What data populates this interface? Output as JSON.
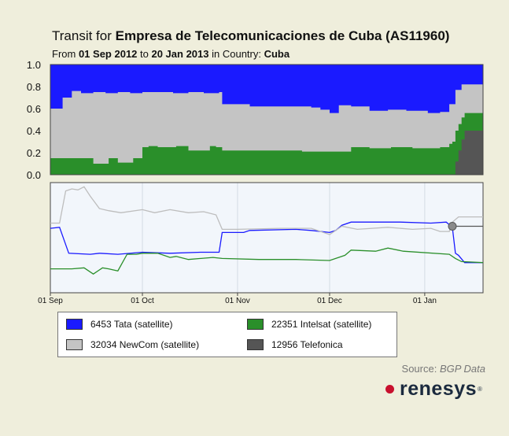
{
  "header": {
    "title_prefix": "Transit for ",
    "title_bold": "Empresa de Telecomunicaciones de Cuba (AS11960)",
    "sub_from": "From ",
    "sub_start": "01 Sep 2012",
    "sub_to": " to ",
    "sub_end": "20 Jan 2013",
    "sub_in": " in Country: ",
    "sub_country": "Cuba"
  },
  "chart_data": [
    {
      "type": "area",
      "stacked": true,
      "x_range": [
        "2012-09-01",
        "2013-01-20"
      ],
      "ylim": [
        0,
        1.0
      ],
      "y_ticks": [
        "1.0",
        "0.8",
        "0.6",
        "0.4",
        "0.2",
        "0.0"
      ],
      "series": [
        {
          "name": "12956 Telefonica",
          "color": "#555555",
          "x": [
            "2012-09-01",
            "2013-01-10",
            "2013-01-11",
            "2013-01-12",
            "2013-01-13",
            "2013-01-14",
            "2013-01-20"
          ],
          "values": [
            0,
            0,
            0.12,
            0.22,
            0.32,
            0.4,
            0.4
          ]
        },
        {
          "name": "22351 Intelsat (satellite)",
          "color": "#2a8f2a",
          "x": [
            "2012-09-01",
            "2012-09-12",
            "2012-09-15",
            "2012-09-20",
            "2012-09-23",
            "2012-09-28",
            "2012-10-01",
            "2012-10-03",
            "2012-10-06",
            "2012-10-12",
            "2012-10-16",
            "2012-10-23",
            "2012-10-25",
            "2012-10-27",
            "2012-11-05",
            "2012-11-15",
            "2012-11-22",
            "2012-12-04",
            "2012-12-08",
            "2012-12-14",
            "2012-12-21",
            "2012-12-28",
            "2013-01-03",
            "2013-01-06",
            "2013-01-09",
            "2013-01-10",
            "2013-01-11",
            "2013-01-12",
            "2013-01-13",
            "2013-01-14",
            "2013-01-20"
          ],
          "values": [
            0.15,
            0.15,
            0.1,
            0.15,
            0.11,
            0.15,
            0.25,
            0.26,
            0.25,
            0.26,
            0.22,
            0.26,
            0.25,
            0.22,
            0.22,
            0.22,
            0.21,
            0.21,
            0.25,
            0.24,
            0.25,
            0.24,
            0.24,
            0.25,
            0.28,
            0.3,
            0.4,
            0.46,
            0.52,
            0.56,
            0.57
          ]
        },
        {
          "name": "32034 NewCom (satellite)",
          "color": "#c4c4c4",
          "x": [
            "2012-09-01",
            "2012-09-04",
            "2012-09-05",
            "2012-09-08",
            "2012-09-11",
            "2012-09-15",
            "2012-09-19",
            "2012-09-23",
            "2012-09-27",
            "2012-10-01",
            "2012-10-06",
            "2012-10-11",
            "2012-10-16",
            "2012-10-21",
            "2012-10-26",
            "2012-10-27",
            "2012-11-05",
            "2012-11-15",
            "2012-11-25",
            "2012-11-28",
            "2012-12-01",
            "2012-12-04",
            "2012-12-08",
            "2012-12-14",
            "2012-12-20",
            "2012-12-26",
            "2013-01-02",
            "2013-01-06",
            "2013-01-09",
            "2013-01-11",
            "2013-01-13",
            "2013-01-20"
          ],
          "values": [
            0.6,
            0.6,
            0.7,
            0.76,
            0.74,
            0.75,
            0.74,
            0.75,
            0.74,
            0.75,
            0.75,
            0.74,
            0.75,
            0.74,
            0.75,
            0.64,
            0.62,
            0.62,
            0.61,
            0.59,
            0.56,
            0.63,
            0.62,
            0.58,
            0.59,
            0.58,
            0.56,
            0.57,
            0.64,
            0.77,
            0.82,
            0.82
          ]
        },
        {
          "name": "6453 Tata (satellite)",
          "color": "#1a1aff",
          "x": [
            "2012-09-01",
            "2013-01-20"
          ],
          "values": [
            1.0,
            1.0
          ]
        }
      ]
    },
    {
      "type": "line",
      "x_range": [
        "2012-09-01",
        "2013-01-20"
      ],
      "x_ticks": [
        "01 Sep",
        "01 Oct",
        "01 Nov",
        "01 Dec",
        "01 Jan"
      ],
      "x_tick_dates": [
        "2012-09-01",
        "2012-10-01",
        "2012-11-01",
        "2012-12-01",
        "2013-01-01"
      ],
      "y_range": [
        0,
        1
      ],
      "series": [
        {
          "name": "6453 Tata (satellite)",
          "color": "#1a1aff",
          "x": [
            "2012-09-01",
            "2012-09-04",
            "2012-09-07",
            "2012-09-14",
            "2012-09-17",
            "2012-09-23",
            "2012-10-01",
            "2012-10-10",
            "2012-10-20",
            "2012-10-26",
            "2012-10-27",
            "2012-11-03",
            "2012-11-05",
            "2012-11-20",
            "2012-11-25",
            "2012-12-01",
            "2012-12-03",
            "2012-12-05",
            "2012-12-08",
            "2012-12-24",
            "2013-01-03",
            "2013-01-08",
            "2013-01-10",
            "2013-01-11",
            "2013-01-12",
            "2013-01-14",
            "2013-01-20"
          ],
          "values": [
            0.59,
            0.6,
            0.35,
            0.34,
            0.35,
            0.34,
            0.36,
            0.35,
            0.36,
            0.36,
            0.55,
            0.55,
            0.57,
            0.58,
            0.57,
            0.55,
            0.57,
            0.62,
            0.65,
            0.65,
            0.64,
            0.65,
            0.6,
            0.35,
            0.33,
            0.26,
            0.26
          ]
        },
        {
          "name": "22351 Intelsat (satellite)",
          "color": "#2a8f2a",
          "x": [
            "2012-09-01",
            "2012-09-08",
            "2012-09-12",
            "2012-09-15",
            "2012-09-18",
            "2012-09-20",
            "2012-09-23",
            "2012-09-26",
            "2012-09-29",
            "2012-10-01",
            "2012-10-06",
            "2012-10-08",
            "2012-10-10",
            "2012-10-12",
            "2012-10-16",
            "2012-10-24",
            "2012-10-27",
            "2012-11-08",
            "2012-11-20",
            "2012-12-01",
            "2012-12-06",
            "2012-12-08",
            "2012-12-16",
            "2012-12-20",
            "2012-12-25",
            "2013-01-09",
            "2013-01-11",
            "2013-01-13",
            "2013-01-20"
          ],
          "values": [
            0.2,
            0.2,
            0.21,
            0.15,
            0.21,
            0.2,
            0.18,
            0.34,
            0.34,
            0.35,
            0.35,
            0.33,
            0.31,
            0.32,
            0.29,
            0.31,
            0.3,
            0.29,
            0.29,
            0.28,
            0.33,
            0.38,
            0.37,
            0.4,
            0.37,
            0.34,
            0.3,
            0.27,
            0.26
          ]
        },
        {
          "name": "32034 NewCom (satellite)",
          "color": "#c4c4c4",
          "x": [
            "2012-09-01",
            "2012-09-04",
            "2012-09-06",
            "2012-09-08",
            "2012-09-10",
            "2012-09-12",
            "2012-09-14",
            "2012-09-17",
            "2012-09-20",
            "2012-09-24",
            "2012-10-01",
            "2012-10-05",
            "2012-10-10",
            "2012-10-16",
            "2012-10-21",
            "2012-10-25",
            "2012-10-27",
            "2012-11-01",
            "2012-11-15",
            "2012-11-25",
            "2012-11-29",
            "2012-12-01",
            "2012-12-05",
            "2012-12-10",
            "2012-12-20",
            "2012-12-28",
            "2013-01-03",
            "2013-01-06",
            "2013-01-09",
            "2013-01-10",
            "2013-01-12",
            "2013-01-20"
          ],
          "values": [
            0.64,
            0.64,
            0.95,
            0.97,
            0.96,
            0.99,
            0.9,
            0.78,
            0.76,
            0.74,
            0.77,
            0.74,
            0.77,
            0.74,
            0.75,
            0.72,
            0.58,
            0.58,
            0.59,
            0.59,
            0.55,
            0.53,
            0.61,
            0.58,
            0.6,
            0.58,
            0.59,
            0.56,
            0.56,
            0.65,
            0.7,
            0.7
          ]
        },
        {
          "name": "12956 Telefonica",
          "color": "#555555",
          "x": [
            "2013-01-10",
            "2013-01-20"
          ],
          "values": [
            0.61,
            0.61
          ]
        }
      ]
    }
  ],
  "legend": {
    "items": [
      {
        "label": "6453 Tata (satellite)",
        "color": "#1a1aff"
      },
      {
        "label": "22351 Intelsat (satellite)",
        "color": "#2a8f2a"
      },
      {
        "label": "32034 NewCom (satellite)",
        "color": "#c4c4c4"
      },
      {
        "label": "12956 Telefonica",
        "color": "#555555"
      }
    ]
  },
  "footer": {
    "source_label": "Source: ",
    "source_value": "BGP Data",
    "brand": "renesys",
    "brand_mark": "®"
  }
}
